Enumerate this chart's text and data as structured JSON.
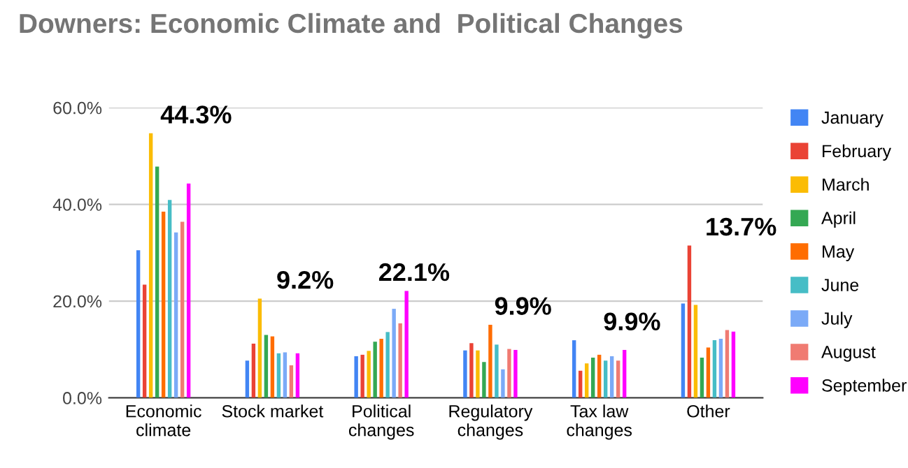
{
  "chart_data": {
    "type": "bar",
    "title": "Downers: Economic Climate and  Political Changes",
    "categories": [
      "Economic\nclimate",
      "Stock market",
      "Political\nchanges",
      "Regulatory\nchanges",
      "Tax law\nchanges",
      "Other"
    ],
    "series": [
      {
        "name": "January",
        "color": "#4285f4",
        "values": [
          30.5,
          7.7,
          8.6,
          9.8,
          11.9,
          19.5
        ]
      },
      {
        "name": "February",
        "color": "#ea4335",
        "values": [
          23.4,
          11.2,
          8.9,
          11.3,
          5.6,
          31.5
        ]
      },
      {
        "name": "March",
        "color": "#fbbc04",
        "values": [
          54.7,
          20.5,
          9.7,
          9.8,
          7.1,
          19.2
        ]
      },
      {
        "name": "April",
        "color": "#34a853",
        "values": [
          47.8,
          13.0,
          11.6,
          7.4,
          8.3,
          8.3
        ]
      },
      {
        "name": "May",
        "color": "#ff6d01",
        "values": [
          38.5,
          12.7,
          12.2,
          15.1,
          8.9,
          10.4
        ]
      },
      {
        "name": "June",
        "color": "#46bdc6",
        "values": [
          40.9,
          9.2,
          13.6,
          11.0,
          7.7,
          11.9
        ]
      },
      {
        "name": "July",
        "color": "#7baaf7",
        "values": [
          34.2,
          9.4,
          18.4,
          5.9,
          8.6,
          12.2
        ]
      },
      {
        "name": "August",
        "color": "#f07b72",
        "values": [
          36.4,
          6.7,
          15.4,
          10.1,
          7.7,
          14.0
        ]
      },
      {
        "name": "September",
        "color": "#ff00ff",
        "values": [
          44.3,
          9.2,
          22.1,
          9.9,
          9.9,
          13.7
        ]
      }
    ],
    "ylim": [
      0,
      60
    ],
    "yticks": [
      {
        "value": 0,
        "label": "0.0%"
      },
      {
        "value": 20,
        "label": "20.0%"
      },
      {
        "value": 40,
        "label": "40.0%"
      },
      {
        "value": 60,
        "label": "60.0%"
      }
    ],
    "grid": "y",
    "legend": "right",
    "annotations": [
      "44.3%",
      "9.2%",
      "22.1%",
      "9.9%",
      "9.9%",
      "13.7%"
    ]
  }
}
